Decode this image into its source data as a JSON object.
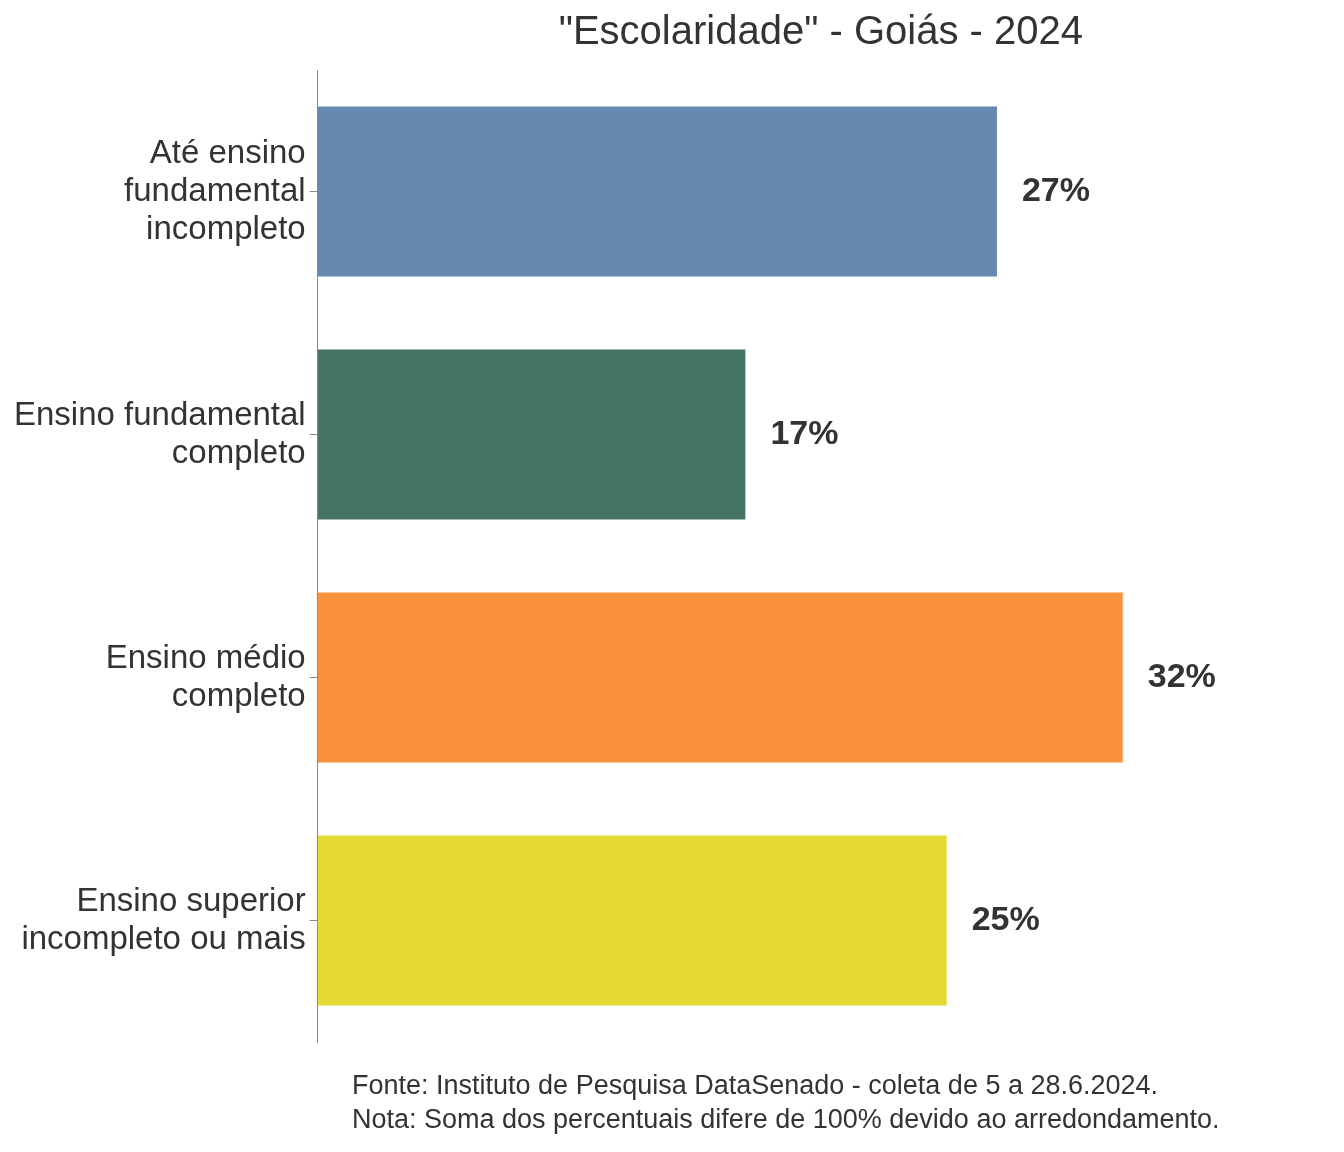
{
  "chart_data": {
    "type": "bar",
    "orientation": "horizontal",
    "title": "\"Escolaridade\" - Goiás - 2024",
    "categories": [
      "Até ensino fundamental incompleto",
      "Ensino fundamental completo",
      "Ensino médio completo",
      "Ensino superior incompleto ou mais"
    ],
    "values": [
      27,
      17,
      32,
      25
    ],
    "colors": [
      "#6589b0",
      "#457562",
      "#f9913d",
      "#e5d935"
    ],
    "value_labels": [
      "27%",
      "17%",
      "32%",
      "25%"
    ],
    "annotations": [
      "Fonte: Instituto de Pesquisa DataSenado - coleta de 5 a 28.6.2024.",
      "Nota: Soma dos percentuais difere de 100% devido ao arredondamento."
    ],
    "legend": false
  }
}
